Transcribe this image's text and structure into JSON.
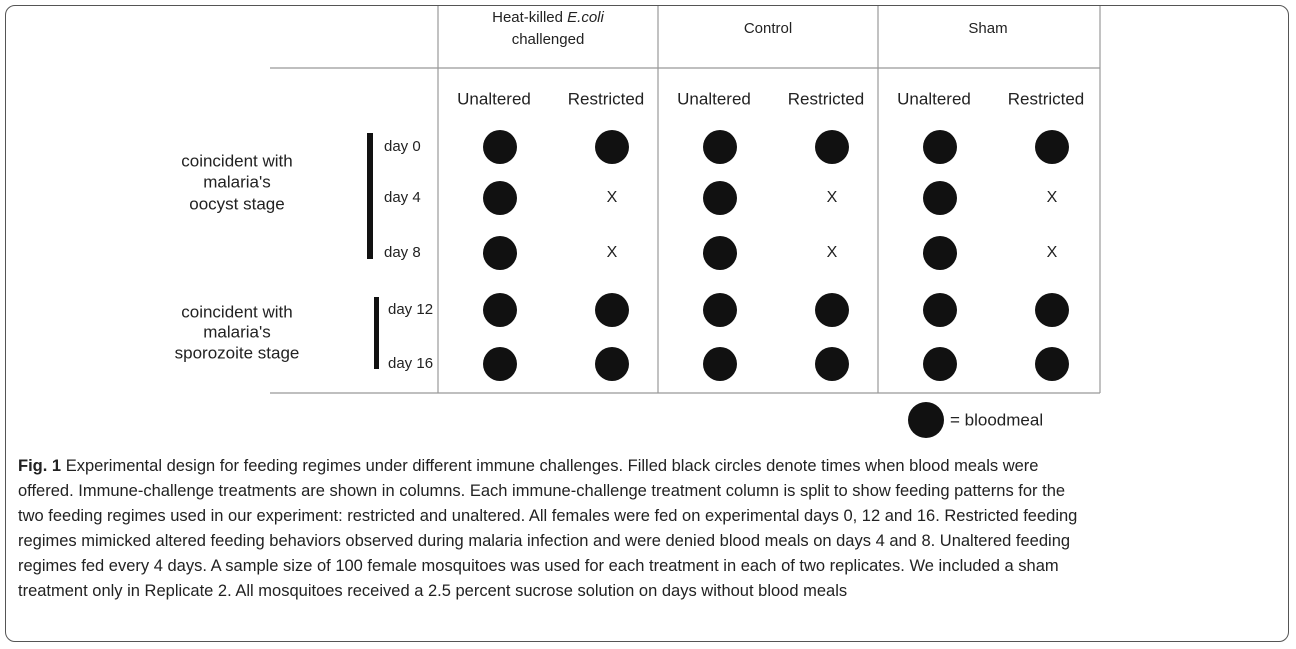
{
  "figure": {
    "groups": [
      {
        "line1": "Heat-killed",
        "italic": "E.coli",
        "line2": "challenged"
      },
      {
        "line1": "Control"
      },
      {
        "line1": "Sham"
      }
    ],
    "subcolumns": [
      "Unaltered",
      "Restricted"
    ],
    "stages": [
      {
        "lines": [
          "coincident with",
          "malaria's",
          "oocyst stage"
        ],
        "days": [
          "day 0",
          "day 4",
          "day 8"
        ]
      },
      {
        "lines": [
          "coincident with",
          "malaria's",
          "sporozoite stage"
        ],
        "days": [
          "day 12",
          "day 16"
        ]
      }
    ],
    "fed": [
      [
        true,
        true,
        true,
        true,
        true,
        true
      ],
      [
        true,
        false,
        true,
        false,
        true,
        false
      ],
      [
        true,
        false,
        true,
        false,
        true,
        false
      ],
      [
        true,
        true,
        true,
        true,
        true,
        true
      ],
      [
        true,
        true,
        true,
        true,
        true,
        true
      ]
    ],
    "no_meal_mark": "X",
    "legend": "= bloodmeal"
  },
  "caption": {
    "label": "Fig. 1",
    "lines": [
      "Experimental design for feeding regimes under different immune challenges. Filled black circles denote times when blood meals were",
      "offered. Immune-challenge treatments are shown in columns. Each immune-challenge treatment column is split to show feeding patterns for the",
      "two feeding regimes used in our experiment: restricted and unaltered. All females were fed on experimental days 0, 12 and 16. Restricted feeding",
      "regimes mimicked altered feeding behaviors observed during malaria infection and were denied blood meals on days 4 and 8. Unaltered feeding",
      "regimes fed every 4 days. A sample size of 100 female mosquitoes was used for each treatment in each of two replicates. We included a sham",
      "treatment only in Replicate 2. All mosquitoes received a 2.5 percent sucrose solution on days without blood meals"
    ]
  }
}
